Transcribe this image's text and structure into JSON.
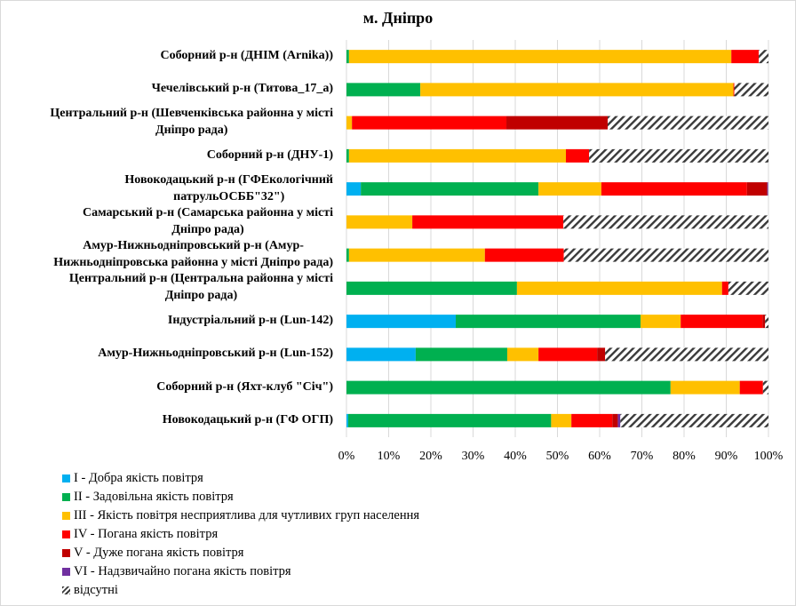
{
  "chart_data": {
    "type": "bar",
    "orientation": "horizontal",
    "stacked": "percent",
    "title": "м. Дніпро",
    "xlabel": "",
    "ylabel": "",
    "xlim": [
      0,
      100
    ],
    "x_ticks": [
      "0%",
      "10%",
      "20%",
      "30%",
      "40%",
      "50%",
      "60%",
      "70%",
      "80%",
      "90%",
      "100%"
    ],
    "grid": "vertical",
    "legend_position": "bottom-left",
    "categories": [
      "Соборний р-н (ДНІМ (Arnika))",
      "Чечелівський р-н (Титова_17_а)",
      "Центральний р-н (Шевченківська районна у місті Дніпро рада)",
      "Соборний р-н (ДНУ-1)",
      "Новокодацький р-н (ГФЕкологічний патрульОСББ\"32\")",
      "Самарський р-н (Самарська районна у місті Дніпро рада)",
      "Амур-Нижньодніпровський  р-н (Амур-Нижньодніпровська районна у місті Дніпро рада)",
      "Центральний р-н (Центральна районна у місті Дніпро рада)",
      "Індустріальний р-н (Lun-142)",
      "Амур-Нижньодніпровський  р-н (Lun-152)",
      "Соборний р-н (Яхт-клуб \"Січ\")",
      "Новокодацький р-н (ГФ ОГП)"
    ],
    "category_lines": [
      [
        "Соборний р-н (ДНІМ (Arnika))"
      ],
      [
        "Чечелівський р-н (Титова_17_а)"
      ],
      [
        "Центральний р-н (Шевченківська районна у місті",
        "Дніпро рада)"
      ],
      [
        "Соборний р-н (ДНУ-1)"
      ],
      [
        "Новокодацький р-н (ГФЕкологічний",
        "патрульОСББ\"32\")"
      ],
      [
        "Самарський р-н (Самарська районна у місті",
        "Дніпро рада)"
      ],
      [
        "Амур-Нижньодніпровський  р-н (Амур-",
        "Нижньодніпровська районна у місті Дніпро рада)"
      ],
      [
        "Центральний р-н (Центральна районна у місті",
        "Дніпро рада)"
      ],
      [
        "Індустріальний р-н (Lun-142)"
      ],
      [
        "Амур-Нижньодніпровський  р-н (Lun-152)"
      ],
      [
        "Соборний р-н (Яхт-клуб \"Січ\")"
      ],
      [
        "Новокодацький р-н (ГФ ОГП)"
      ]
    ],
    "series": [
      {
        "name": "I - Добра якість  повітря",
        "color": "#00b0f0",
        "pattern": "solid",
        "values": [
          0,
          0,
          0,
          0,
          3.4,
          0,
          0,
          0,
          25.9,
          16.4,
          0,
          0.4
        ]
      },
      {
        "name": "II - Задовільна якість  повітря",
        "color": "#00b050",
        "pattern": "solid",
        "values": [
          0.6,
          17.5,
          0,
          0.6,
          42.1,
          0,
          0.6,
          40.4,
          43.8,
          21.7,
          76.8,
          48.1
        ]
      },
      {
        "name": "III - Якість  повітря несприятлива для чутливих груп населення",
        "color": "#ffc000",
        "pattern": "solid",
        "values": [
          90.6,
          74.2,
          1.3,
          51.4,
          14.9,
          15.6,
          32.2,
          48.6,
          9.5,
          7.4,
          16.4,
          4.8
        ]
      },
      {
        "name": "IV - Погана якість  повітря",
        "color": "#ff0000",
        "pattern": "solid",
        "values": [
          6.5,
          0.2,
          36.6,
          5.5,
          34.5,
          35.8,
          18.7,
          1.5,
          19.4,
          13.9,
          5.5,
          9.7
        ]
      },
      {
        "name": "V - Дуже погана якість  повітря",
        "color": "#c00000",
        "pattern": "solid",
        "values": [
          0,
          0,
          24.0,
          0,
          4.8,
          0,
          0,
          0,
          0.6,
          1.9,
          0,
          1.3
        ]
      },
      {
        "name": "VI - Надзвичайно погана якість  повітря",
        "color": "#7030a0",
        "pattern": "solid",
        "values": [
          0,
          0,
          0,
          0,
          0.2,
          0,
          0,
          0,
          0,
          0,
          0,
          0.6
        ]
      },
      {
        "name": "відсутні",
        "color": "#404040",
        "pattern": "hatch",
        "values": [
          2.3,
          8.1,
          38.1,
          42.5,
          0,
          48.6,
          48.5,
          9.5,
          0.8,
          38.7,
          1.3,
          35.1
        ]
      }
    ]
  }
}
